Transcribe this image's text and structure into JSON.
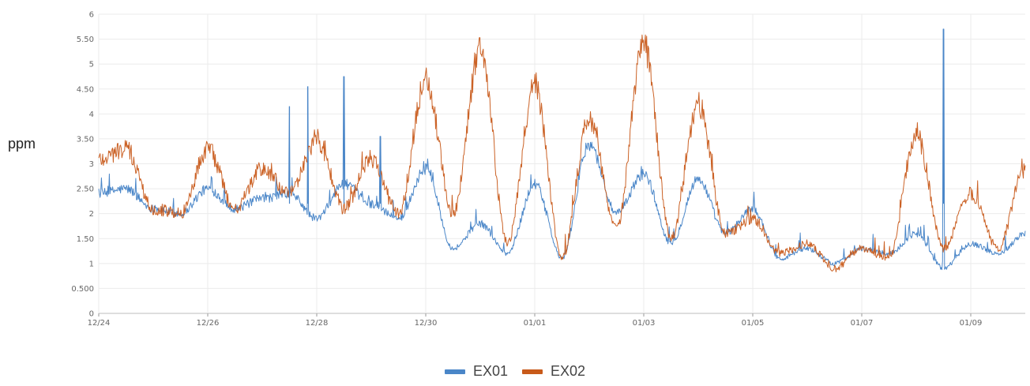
{
  "chart_data": {
    "type": "line",
    "ylabel": "ppm",
    "ylim": [
      0,
      6
    ],
    "yticks": [
      "0",
      "0.500",
      "1",
      "1.50",
      "2",
      "2.50",
      "3",
      "3.50",
      "4",
      "4.50",
      "5",
      "5.50",
      "6"
    ],
    "xlim": [
      "12/24",
      "01/10"
    ],
    "xticks": [
      "12/24",
      "12/26",
      "12/28",
      "12/30",
      "01/01",
      "01/03",
      "01/05",
      "01/07",
      "01/09"
    ],
    "grid": true,
    "legend_position": "bottom-center",
    "series": [
      {
        "name": "EX01",
        "color": "#4a86c8",
        "x": [
          "12/24",
          "12/24 12h",
          "12/25",
          "12/25 12h",
          "12/26",
          "12/26 12h",
          "12/27",
          "12/27 12h",
          "12/28",
          "12/28 12h",
          "12/29",
          "12/29 12h",
          "12/30",
          "12/30 12h",
          "12/31",
          "12/31 12h",
          "01/01",
          "01/01 12h",
          "01/02",
          "01/02 12h",
          "01/03",
          "01/03 12h",
          "01/04",
          "01/04 12h",
          "01/05",
          "01/05 12h",
          "01/06",
          "01/06 12h",
          "01/07",
          "01/07 12h",
          "01/08",
          "01/08 12h",
          "01/09",
          "01/09 12h",
          "01/10"
        ],
        "y": [
          2.4,
          2.5,
          2.1,
          2.0,
          2.5,
          2.1,
          2.3,
          2.4,
          1.9,
          2.6,
          2.2,
          1.9,
          2.9,
          1.3,
          1.8,
          1.2,
          2.6,
          1.1,
          3.4,
          2.0,
          2.8,
          1.4,
          2.7,
          1.6,
          2.1,
          1.1,
          1.3,
          1.0,
          1.3,
          1.2,
          1.6,
          0.9,
          1.4,
          1.2,
          1.6
        ],
        "spikes": [
          [
            "12/27 12h",
            4.15
          ],
          [
            "12/27 20h",
            4.55
          ],
          [
            "12/28 12h",
            4.75
          ],
          [
            "12/29 04h",
            3.55
          ],
          [
            "01/08 12h",
            5.7
          ]
        ]
      },
      {
        "name": "EX02",
        "color": "#c85a1a",
        "x": [
          "12/24",
          "12/24 12h",
          "12/25",
          "12/25 12h",
          "12/26",
          "12/26 12h",
          "12/27",
          "12/27 12h",
          "12/28",
          "12/28 12h",
          "12/29",
          "12/29 12h",
          "12/30",
          "12/30 12h",
          "12/31",
          "12/31 12h",
          "01/01",
          "01/01 12h",
          "01/02",
          "01/02 12h",
          "01/03",
          "01/03 12h",
          "01/04",
          "01/04 12h",
          "01/05",
          "01/05 12h",
          "01/06",
          "01/06 12h",
          "01/07",
          "01/07 12h",
          "01/08",
          "01/08 12h",
          "01/09",
          "01/09 12h",
          "01/10"
        ],
        "y": [
          3.1,
          3.3,
          2.1,
          2.0,
          3.3,
          2.1,
          2.9,
          2.4,
          3.5,
          2.1,
          3.1,
          2.0,
          4.7,
          2.0,
          5.3,
          1.4,
          4.6,
          1.1,
          3.9,
          1.7,
          5.4,
          1.5,
          4.2,
          1.6,
          1.9,
          1.2,
          1.4,
          0.9,
          1.3,
          1.1,
          3.6,
          1.3,
          2.4,
          1.3,
          2.9
        ]
      }
    ]
  }
}
